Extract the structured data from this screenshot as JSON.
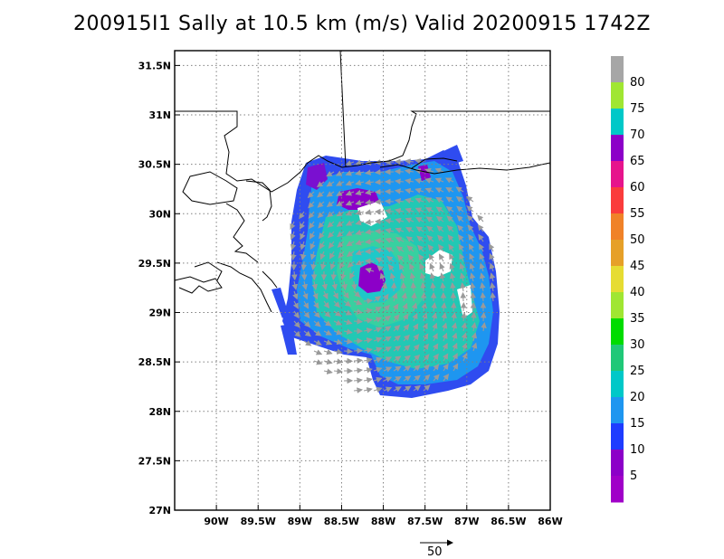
{
  "title": "200915I1 Sally at 10.5 km (m/s) Valid 20200915 1742Z",
  "map": {
    "lon_range": [
      -90.5,
      -86
    ],
    "lat_range": [
      27,
      31.65
    ],
    "lon_ticks": [
      -90,
      -89.5,
      -89,
      -88.5,
      -88,
      -87.5,
      -87,
      -86.5,
      -86
    ],
    "lon_tick_labels": [
      "90W",
      "89.5W",
      "89W",
      "88.5W",
      "88W",
      "87.5W",
      "87W",
      "86.5W",
      "86W"
    ],
    "lat_ticks": [
      31.5,
      31,
      30.5,
      30,
      29.5,
      29,
      28.5,
      28,
      27.5,
      27
    ],
    "lat_tick_labels": [
      "31.5N",
      "31N",
      "30.5N",
      "30N",
      "29.5N",
      "29N",
      "28.5N",
      "28N",
      "27.5N",
      "27N"
    ],
    "grid": "dotted",
    "storm_center": {
      "lon": -88.2,
      "lat": 29.3
    }
  },
  "colorbar": {
    "labels": [
      "80",
      "75",
      "70",
      "65",
      "60",
      "55",
      "50",
      "45",
      "40",
      "35",
      "30",
      "25",
      "20",
      "15",
      "10",
      "5"
    ],
    "colors": [
      "#a6a6a6",
      "#a0e632",
      "#00c8c8",
      "#8c00c8",
      "#e6148c",
      "#fa3c3c",
      "#f08228",
      "#e6a028",
      "#e6dc32",
      "#a0e632",
      "#00dc00",
      "#20c878",
      "#00c8c8",
      "#1e96f0",
      "#1e3cff",
      "#8c00c8",
      "#a000c8"
    ]
  },
  "reference_vector": {
    "label": "50"
  }
}
